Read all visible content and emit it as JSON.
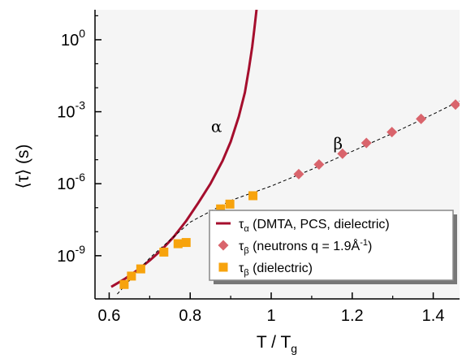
{
  "chart_data": {
    "type": "scatter",
    "xlabel": "T / Tg",
    "ylabel": "⟨τ⟩ (s)",
    "xlim": [
      0.565,
      1.465
    ],
    "ylim": [
      -10.8,
      1.25
    ],
    "y_scale": "log",
    "x_ticks": [
      "0.6",
      "0.8",
      "1",
      "1.2",
      "1.4"
    ],
    "y_ticks": [
      {
        "value": 0,
        "mantissa": "10",
        "exponent": "0"
      },
      {
        "value": -3,
        "mantissa": "10",
        "exponent": "-3"
      },
      {
        "value": -6,
        "mantissa": "10",
        "exponent": "-6"
      },
      {
        "value": -9,
        "mantissa": "10",
        "exponent": "-9"
      }
    ],
    "grid": false,
    "legend_position": "bottom-right",
    "annotations": [
      {
        "text": "α",
        "x": 0.865,
        "y": -3.85
      },
      {
        "text": "β",
        "x": 1.165,
        "y": -4.55
      }
    ],
    "series": [
      {
        "legend": "τα (DMTA, PCS, dielectric)",
        "symbol": "τ",
        "sub": "α",
        "rest": " (DMTA, PCS, dielectric)",
        "mark": "line",
        "color": "#a50e2d",
        "x": [
          0.605,
          0.64,
          0.67,
          0.7,
          0.73,
          0.76,
          0.79,
          0.82,
          0.85,
          0.88,
          0.9,
          0.92,
          0.935,
          0.945,
          0.953,
          0.958,
          0.962,
          0.966,
          0.97
        ],
        "y": [
          -10.3,
          -9.95,
          -9.6,
          -9.2,
          -8.75,
          -8.2,
          -7.55,
          -6.8,
          -6.0,
          -5.05,
          -4.25,
          -3.2,
          -2.2,
          -1.2,
          -0.3,
          0.4,
          1.0,
          1.6,
          2.2
        ]
      },
      {
        "legend": "τβ (neutrons  q = 1.9Å-1)",
        "symbol": "τ",
        "sub": "β",
        "rest": " (neutrons  q = 1.9Å",
        "sup": "-1",
        "rest2": ")",
        "mark": "diamond",
        "color": "#d9646c",
        "x": [
          1.068,
          1.118,
          1.176,
          1.235,
          1.298,
          1.37,
          1.455
        ],
        "y": [
          -5.6,
          -5.2,
          -4.75,
          -4.3,
          -3.85,
          -3.3,
          -2.7
        ]
      },
      {
        "legend": "τβ (dielectric)",
        "symbol": "τ",
        "sub": "β",
        "rest": " (dielectric)",
        "mark": "square",
        "color": "#f7a30d",
        "x": [
          0.637,
          0.655,
          0.678,
          0.735,
          0.77,
          0.79,
          0.875,
          0.898,
          0.955
        ],
        "y": [
          -10.2,
          -9.85,
          -9.55,
          -8.85,
          -8.5,
          -8.45,
          -7.05,
          -6.85,
          -6.5
        ]
      },
      {
        "legend": "",
        "mark": "dashed-fit",
        "color": "#000000",
        "x": [
          0.62,
          0.7,
          0.8,
          0.9,
          1.0,
          1.1,
          1.2,
          1.3,
          1.4,
          1.465
        ],
        "y": [
          -10.6,
          -9.1,
          -7.6,
          -6.7,
          -6.1,
          -5.4,
          -4.65,
          -3.9,
          -3.1,
          -2.55
        ]
      }
    ]
  }
}
